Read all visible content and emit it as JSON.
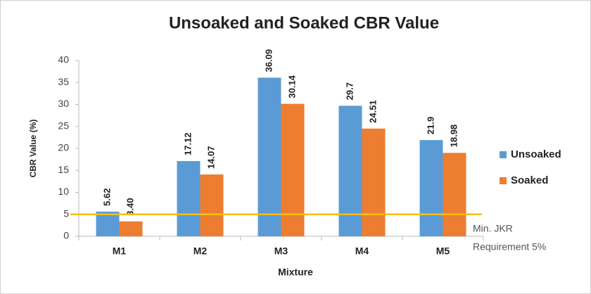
{
  "chart_data": {
    "type": "bar",
    "title": "Unsoaked and Soaked CBR Value",
    "x_label": "Mixture",
    "y_label": "CBR Value (%)",
    "categories": [
      "M1",
      "M2",
      "M3",
      "M4",
      "M5"
    ],
    "series": [
      {
        "name": "Unsoaked",
        "color": "#5b9bd5",
        "values": [
          5.62,
          17.12,
          36.09,
          29.7,
          21.9
        ]
      },
      {
        "name": "Soaked",
        "color": "#ed7d31",
        "values": [
          3.4,
          14.07,
          30.14,
          24.51,
          18.98
        ],
        "value_labels": [
          "3.40",
          "14.07",
          "30.14",
          "24.51",
          "18.98"
        ]
      }
    ],
    "ylim": [
      0,
      40
    ],
    "yticks": [
      0,
      5,
      10,
      15,
      20,
      25,
      30,
      35,
      40
    ],
    "grid": false,
    "legend": "right",
    "reference_line": {
      "value": 5,
      "color": "#f5c010",
      "label": [
        "Min. JKR",
        "Requirement 5%"
      ]
    }
  }
}
